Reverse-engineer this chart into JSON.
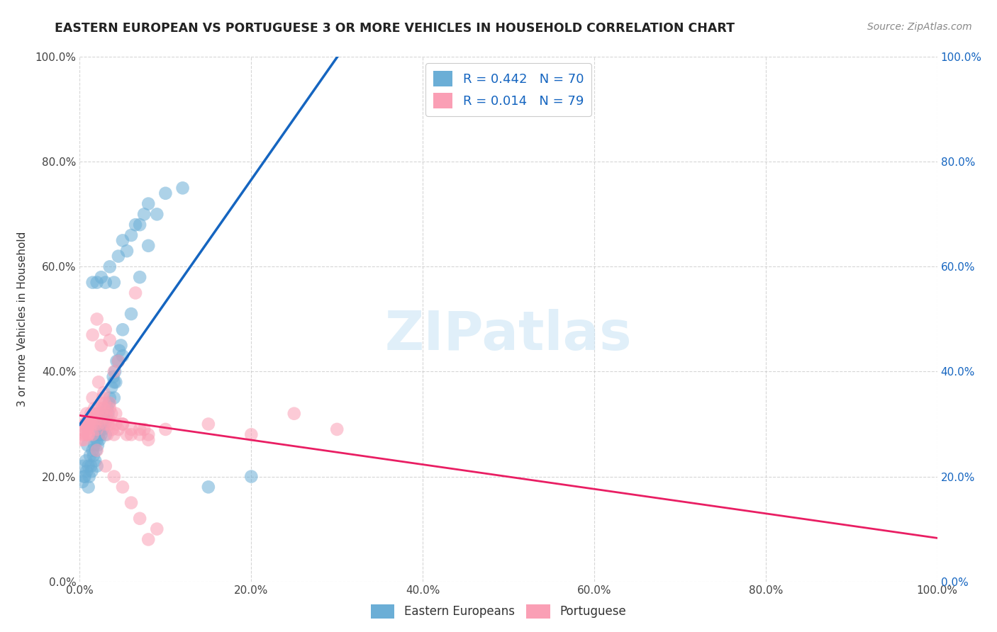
{
  "title": "EASTERN EUROPEAN VS PORTUGUESE 3 OR MORE VEHICLES IN HOUSEHOLD CORRELATION CHART",
  "source": "Source: ZipAtlas.com",
  "ylabel": "3 or more Vehicles in Household",
  "legend_label1": "Eastern Europeans",
  "legend_label2": "Portuguese",
  "R1": 0.442,
  "N1": 70,
  "R2": 0.014,
  "N2": 79,
  "color_blue": "#6baed6",
  "color_pink": "#fa9fb5",
  "line_blue": "#1565C0",
  "line_pink": "#E91E63",
  "watermark": "ZIPatlas",
  "blue_x": [
    0.3,
    0.5,
    0.7,
    0.8,
    1.0,
    1.1,
    1.2,
    1.3,
    1.4,
    1.5,
    1.6,
    1.7,
    1.8,
    1.9,
    2.0,
    2.1,
    2.2,
    2.3,
    2.4,
    2.5,
    2.6,
    2.7,
    2.8,
    2.9,
    3.0,
    3.1,
    3.2,
    3.3,
    3.4,
    3.5,
    3.7,
    3.9,
    4.0,
    4.1,
    4.2,
    4.3,
    4.5,
    4.6,
    4.8,
    5.0,
    0.4,
    0.6,
    0.9,
    1.5,
    2.0,
    2.5,
    3.0,
    3.5,
    4.0,
    4.5,
    5.0,
    5.5,
    6.0,
    6.5,
    7.0,
    7.5,
    8.0,
    1.0,
    2.0,
    3.0,
    4.0,
    5.0,
    6.0,
    7.0,
    8.0,
    9.0,
    10.0,
    12.0,
    15.0,
    20.0
  ],
  "blue_y": [
    19,
    20,
    23,
    21,
    22,
    20,
    24,
    22,
    21,
    25,
    24,
    26,
    23,
    25,
    27,
    26,
    28,
    27,
    29,
    28,
    30,
    29,
    31,
    30,
    32,
    31,
    33,
    32,
    34,
    35,
    37,
    39,
    38,
    40,
    38,
    42,
    42,
    44,
    45,
    48,
    22,
    20,
    26,
    57,
    57,
    58,
    57,
    60,
    57,
    62,
    65,
    63,
    66,
    68,
    68,
    70,
    72,
    18,
    22,
    28,
    35,
    43,
    51,
    58,
    64,
    70,
    74,
    75,
    18,
    20
  ],
  "pink_x": [
    0.2,
    0.3,
    0.4,
    0.5,
    0.6,
    0.7,
    0.8,
    0.9,
    1.0,
    1.1,
    1.2,
    1.3,
    1.4,
    1.5,
    1.6,
    1.7,
    1.8,
    1.9,
    2.0,
    2.1,
    2.2,
    2.3,
    2.4,
    2.5,
    2.6,
    2.7,
    2.8,
    2.9,
    3.0,
    3.1,
    3.2,
    3.3,
    3.4,
    3.5,
    3.6,
    3.7,
    3.8,
    4.0,
    4.2,
    4.5,
    0.5,
    1.0,
    1.5,
    2.0,
    2.5,
    3.0,
    3.5,
    4.0,
    4.5,
    5.0,
    5.5,
    6.0,
    6.5,
    7.0,
    7.5,
    8.0,
    0.8,
    1.5,
    2.2,
    2.8,
    3.5,
    4.2,
    5.0,
    6.0,
    7.0,
    8.0,
    10.0,
    15.0,
    20.0,
    25.0,
    30.0,
    2.0,
    3.0,
    4.0,
    5.0,
    6.0,
    7.0,
    8.0,
    9.0
  ],
  "pink_y": [
    27,
    28,
    29,
    27,
    30,
    28,
    29,
    30,
    28,
    30,
    31,
    32,
    30,
    28,
    32,
    33,
    30,
    31,
    29,
    32,
    30,
    33,
    31,
    34,
    32,
    35,
    33,
    34,
    30,
    32,
    28,
    30,
    31,
    33,
    30,
    32,
    29,
    28,
    30,
    29,
    30,
    28,
    47,
    50,
    45,
    48,
    46,
    40,
    42,
    30,
    28,
    29,
    55,
    28,
    29,
    27,
    32,
    35,
    38,
    36,
    34,
    32,
    30,
    28,
    29,
    28,
    29,
    30,
    28,
    32,
    29,
    25,
    22,
    20,
    18,
    15,
    12,
    8,
    10
  ]
}
